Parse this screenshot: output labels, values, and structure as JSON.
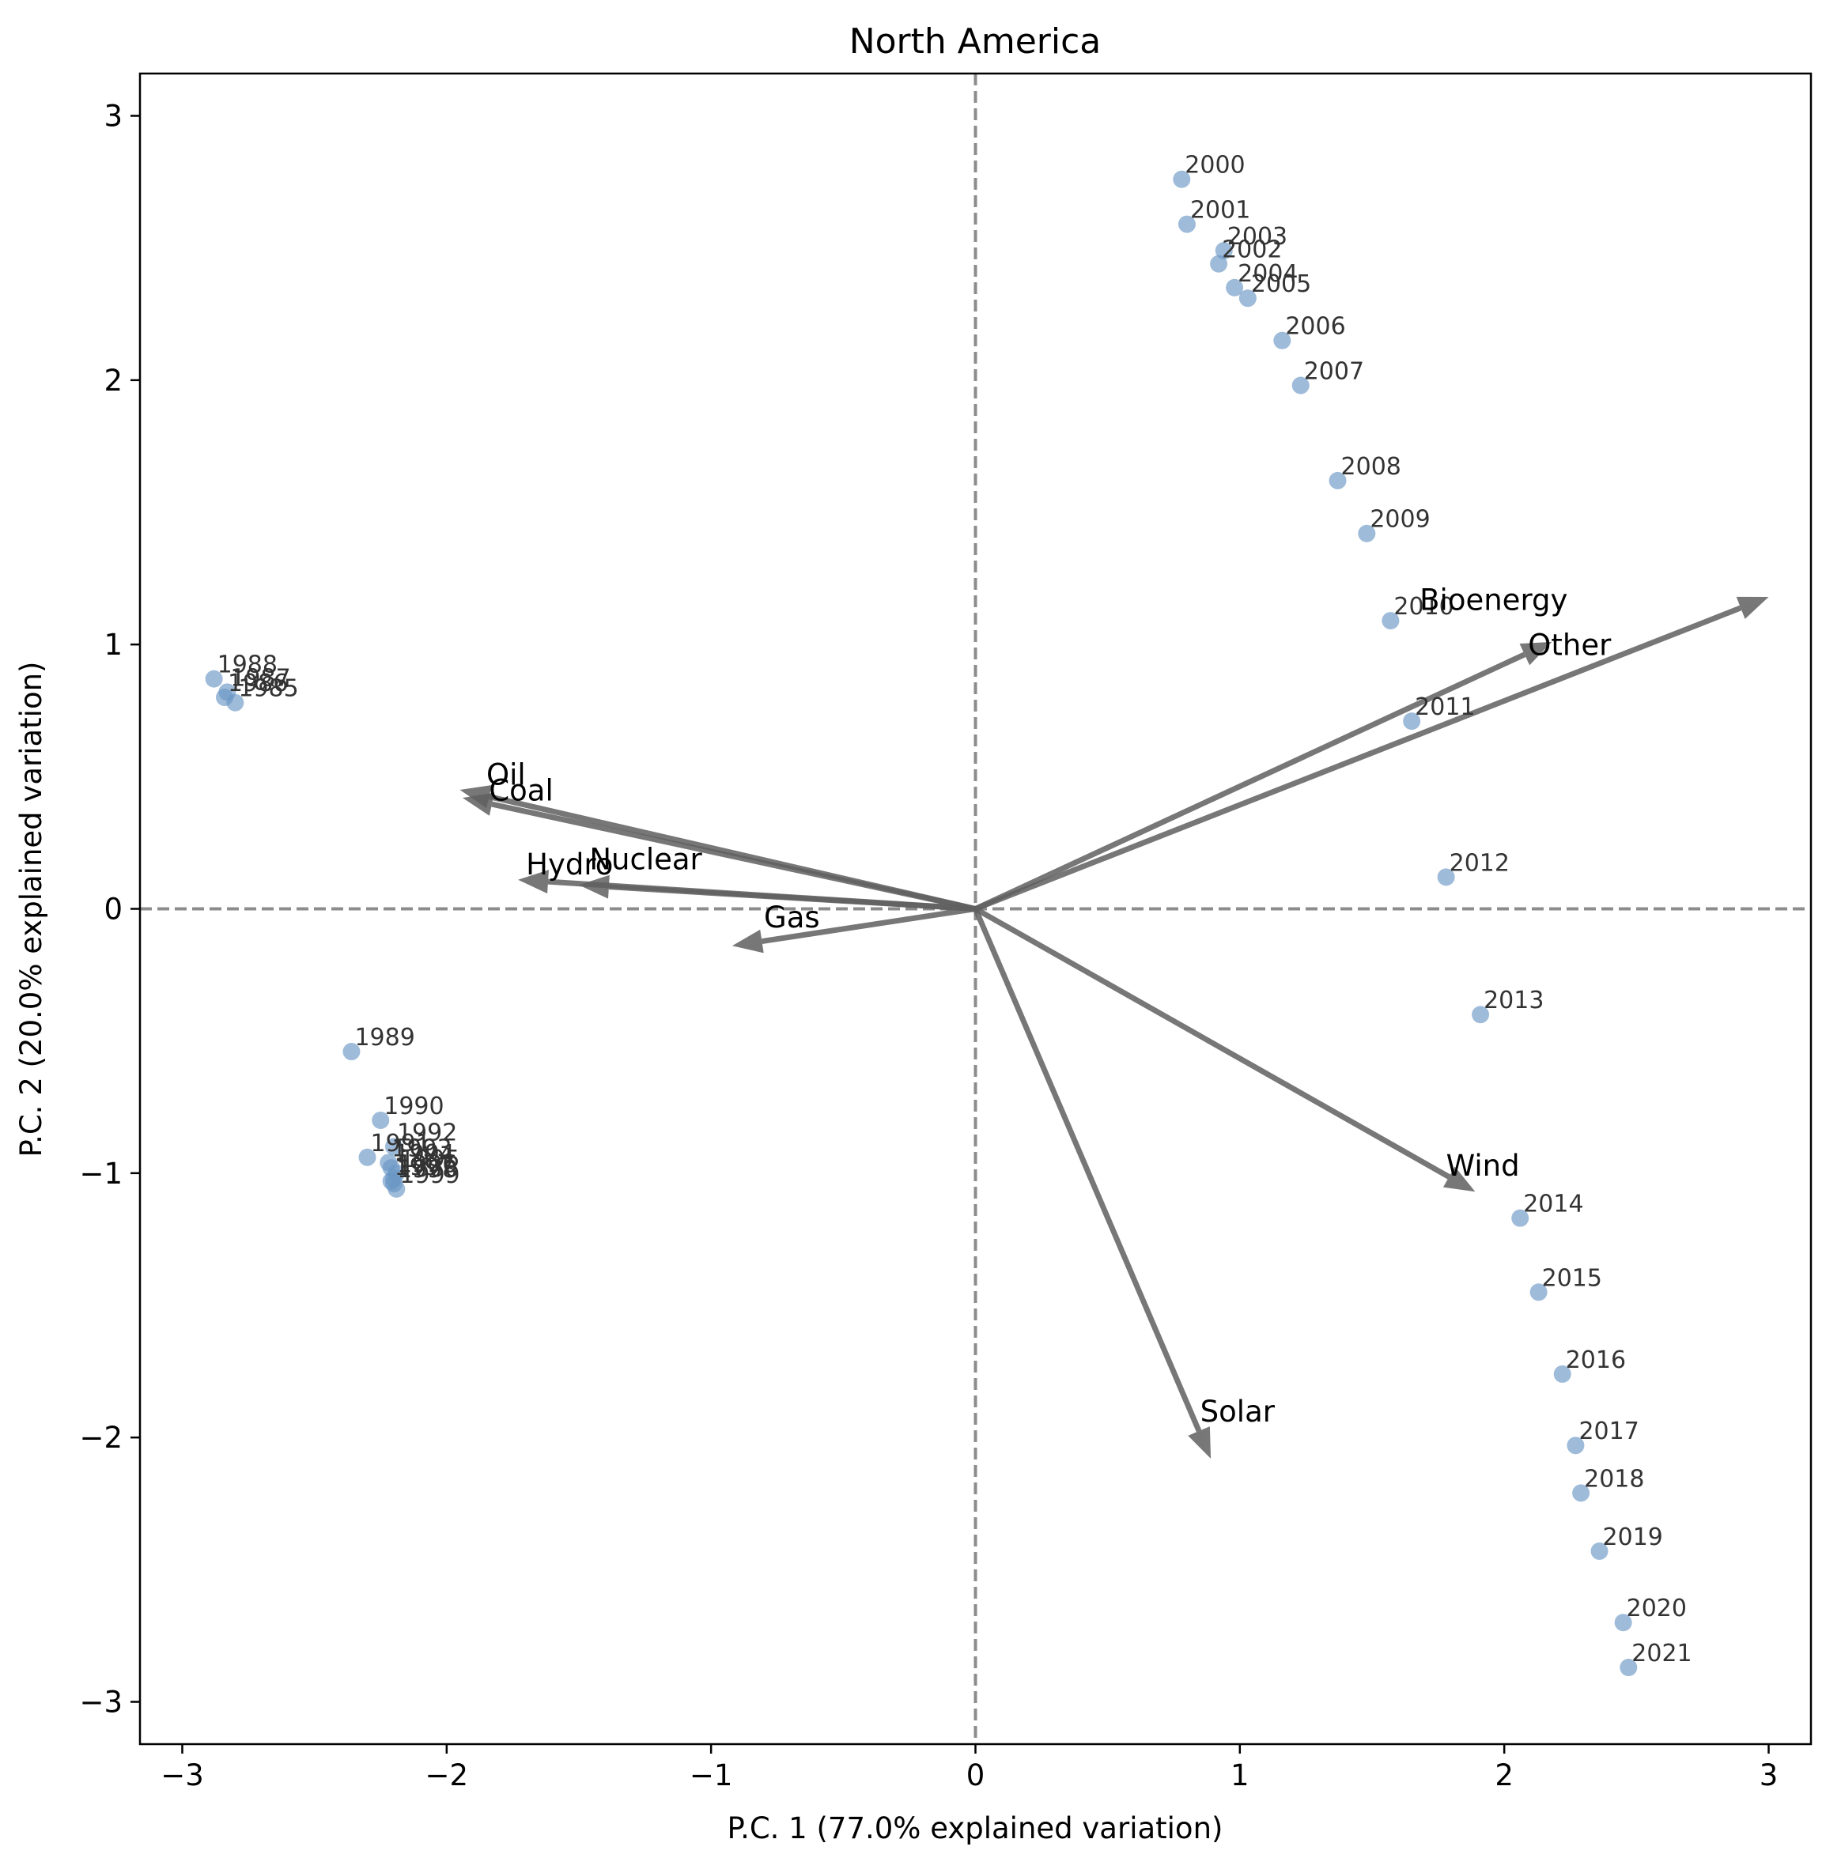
{
  "chart_data": {
    "type": "scatter",
    "title": "North America",
    "xlabel": "P.C. 1 (77.0% explained variation)",
    "ylabel": "P.C. 2 (20.0% explained variation)",
    "xlim": [
      -3.16,
      3.16
    ],
    "ylim": [
      -3.16,
      3.16
    ],
    "xticks": [
      -3,
      -2,
      -1,
      0,
      1,
      2,
      3
    ],
    "yticks": [
      -3,
      -2,
      -1,
      0,
      1,
      2,
      3
    ],
    "tick_labels": [
      "−3",
      "−2",
      "−1",
      "0",
      "1",
      "2",
      "3"
    ],
    "reference_lines": {
      "x": 0,
      "y": 0,
      "style": "dashed"
    },
    "colors": {
      "points": "#6a96c4",
      "arrows": "#606060",
      "reference": "#8c8c8c"
    },
    "points": [
      {
        "label": "1985",
        "x": -2.8,
        "y": 0.78
      },
      {
        "label": "1986",
        "x": -2.84,
        "y": 0.8
      },
      {
        "label": "1987",
        "x": -2.83,
        "y": 0.82
      },
      {
        "label": "1988",
        "x": -2.88,
        "y": 0.87
      },
      {
        "label": "1989",
        "x": -2.36,
        "y": -0.54
      },
      {
        "label": "1990",
        "x": -2.25,
        "y": -0.8
      },
      {
        "label": "1991",
        "x": -2.3,
        "y": -0.94
      },
      {
        "label": "1992",
        "x": -2.2,
        "y": -0.9
      },
      {
        "label": "1993",
        "x": -2.22,
        "y": -0.96
      },
      {
        "label": "1994",
        "x": -2.21,
        "y": -0.98
      },
      {
        "label": "1995",
        "x": -2.19,
        "y": -1.0
      },
      {
        "label": "1996",
        "x": -2.2,
        "y": -1.02
      },
      {
        "label": "1997",
        "x": -2.21,
        "y": -1.03
      },
      {
        "label": "1998",
        "x": -2.2,
        "y": -1.04
      },
      {
        "label": "1999",
        "x": -2.19,
        "y": -1.06
      },
      {
        "label": "2000",
        "x": 0.78,
        "y": 2.76
      },
      {
        "label": "2001",
        "x": 0.8,
        "y": 2.59
      },
      {
        "label": "2002",
        "x": 0.92,
        "y": 2.44
      },
      {
        "label": "2003",
        "x": 0.94,
        "y": 2.49
      },
      {
        "label": "2004",
        "x": 0.98,
        "y": 2.35
      },
      {
        "label": "2005",
        "x": 1.03,
        "y": 2.31
      },
      {
        "label": "2006",
        "x": 1.16,
        "y": 2.15
      },
      {
        "label": "2007",
        "x": 1.23,
        "y": 1.98
      },
      {
        "label": "2008",
        "x": 1.37,
        "y": 1.62
      },
      {
        "label": "2009",
        "x": 1.48,
        "y": 1.42
      },
      {
        "label": "2010",
        "x": 1.57,
        "y": 1.09
      },
      {
        "label": "2011",
        "x": 1.65,
        "y": 0.71
      },
      {
        "label": "2012",
        "x": 1.78,
        "y": 0.12
      },
      {
        "label": "2013",
        "x": 1.91,
        "y": -0.4
      },
      {
        "label": "2014",
        "x": 2.06,
        "y": -1.17
      },
      {
        "label": "2015",
        "x": 2.13,
        "y": -1.45
      },
      {
        "label": "2016",
        "x": 2.22,
        "y": -1.76
      },
      {
        "label": "2017",
        "x": 2.27,
        "y": -2.03
      },
      {
        "label": "2018",
        "x": 2.29,
        "y": -2.21
      },
      {
        "label": "2019",
        "x": 2.36,
        "y": -2.43
      },
      {
        "label": "2020",
        "x": 2.45,
        "y": -2.7
      },
      {
        "label": "2021",
        "x": 2.47,
        "y": -2.87
      }
    ],
    "loadings": [
      {
        "label": "Oil",
        "x": -1.95,
        "y": 0.45
      },
      {
        "label": "Coal",
        "x": -1.94,
        "y": 0.42
      },
      {
        "label": "Nuclear",
        "x": -1.5,
        "y": 0.09
      },
      {
        "label": "Hydro",
        "x": -1.73,
        "y": 0.11
      },
      {
        "label": "Gas",
        "x": -0.92,
        "y": -0.14
      },
      {
        "label": "Bioenergy",
        "x": 3.0,
        "y": 1.18
      },
      {
        "label": "Other",
        "x": 2.18,
        "y": 1.01
      },
      {
        "label": "Wind",
        "x": 1.89,
        "y": -1.07
      },
      {
        "label": "Solar",
        "x": 0.89,
        "y": -2.08
      }
    ]
  }
}
